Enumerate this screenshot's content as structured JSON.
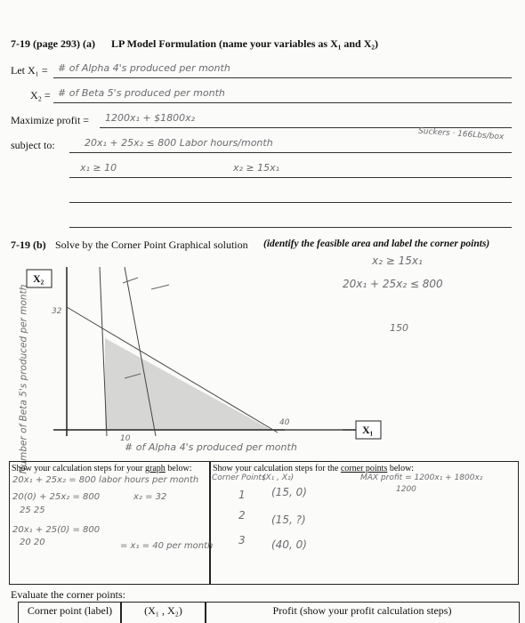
{
  "part_a": {
    "label": "7-19 (page 293) (a)",
    "title": "LP Model Formulation (name your variables as X₁ and X₂)",
    "let_x1": "Let X₁ =",
    "x1_answer": "# of Alpha 4's produced per month",
    "x2_label": "X₂ =",
    "x2_answer": "# of Beta 5's produced per month",
    "maximize": "Maximize profit =",
    "objective": "1200x₁ + $1800x₂",
    "subject_to": "subject to:",
    "constraint_1": "20x₁ + 25x₂ ≤ 800 Labor hours/month",
    "side_note": "Suckers · 166Lbs/box",
    "constraint_2": "x₁ ≥ 10",
    "constraint_3": "x₂ ≥ 15x₁"
  },
  "part_b": {
    "label": "7-19 (b)",
    "title": "Solve by the Corner Point Graphical solution",
    "instruction": "(identify the feasible area and label the corner points)",
    "graph": {
      "y_axis_box": "X₂",
      "x_axis_box": "X₁",
      "note_1": "x₂ ≥ 15x₁",
      "note_2": "20x₁ + 25x₂ ≤ 800",
      "note_3": "150",
      "y_mark": "32",
      "x_mark_1": "10",
      "x_mark_2": "40",
      "x_label": "# of Alpha 4's produced per month",
      "y_label": "Number of Beta 5's produced per month"
    }
  },
  "work_table": {
    "left_pre": "Show your calculation steps for your ",
    "left_underlined": "graph",
    "left_post": " below:",
    "right_pre": "Show your calculation steps for the ",
    "right_underlined": "corner points",
    "right_post": " below:",
    "left_lines": [
      "20x₁ + 25x₂ = 800 labor hours per month",
      "20(0) + 25x₂ = 800",
      "25      25",
      "x₂ = 32",
      "20x₁ + 25(0) = 800",
      "20      20",
      "= x₁ = 40 per month"
    ],
    "right_lines": [
      "Corner Points",
      "(X₁ , X₂)",
      "MAX profit = 1200x₁ + 1800x₂",
      "1200",
      "1",
      "(15, 0)",
      "2",
      "(15, ?)",
      "3",
      "(40, 0)"
    ]
  },
  "evaluate": {
    "heading": "Evaluate the corner points:",
    "columns": [
      "Corner point (label)",
      "(X₁ , X₂)",
      "Profit (show your profit calculation steps)"
    ]
  }
}
